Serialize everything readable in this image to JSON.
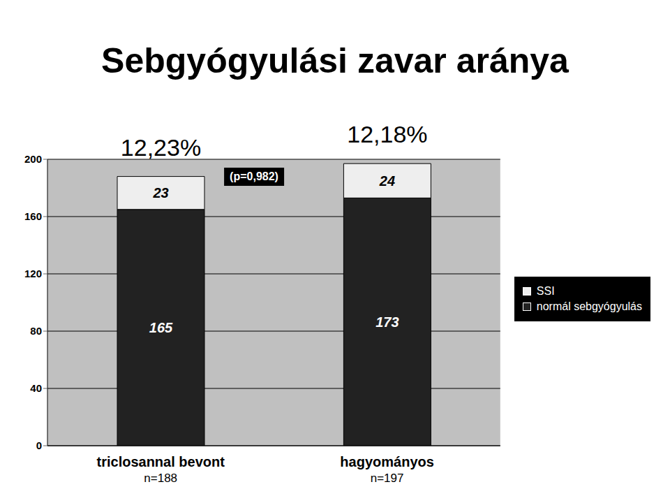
{
  "chart_data": {
    "type": "bar",
    "title": "Sebgyógyulási zavar aránya",
    "categories": [
      "triclosannal bevont",
      "hagyományos"
    ],
    "series": [
      {
        "name": "normál sebgyógyulás",
        "color": "#222222",
        "values": [
          165,
          173
        ]
      },
      {
        "name": "SSI",
        "color": "#eeeeee",
        "values": [
          23,
          24
        ]
      }
    ],
    "stacked": true,
    "data_labels": true,
    "ylim": [
      0,
      200
    ],
    "yticks": [
      0,
      40,
      80,
      120,
      160,
      200
    ],
    "grid": true,
    "legend": "right",
    "annotations": {
      "percentages": [
        "12,23%",
        "12,18%"
      ],
      "p_value": "(p=0,982)",
      "sample_sizes": [
        "n=188",
        "n=197"
      ]
    }
  }
}
